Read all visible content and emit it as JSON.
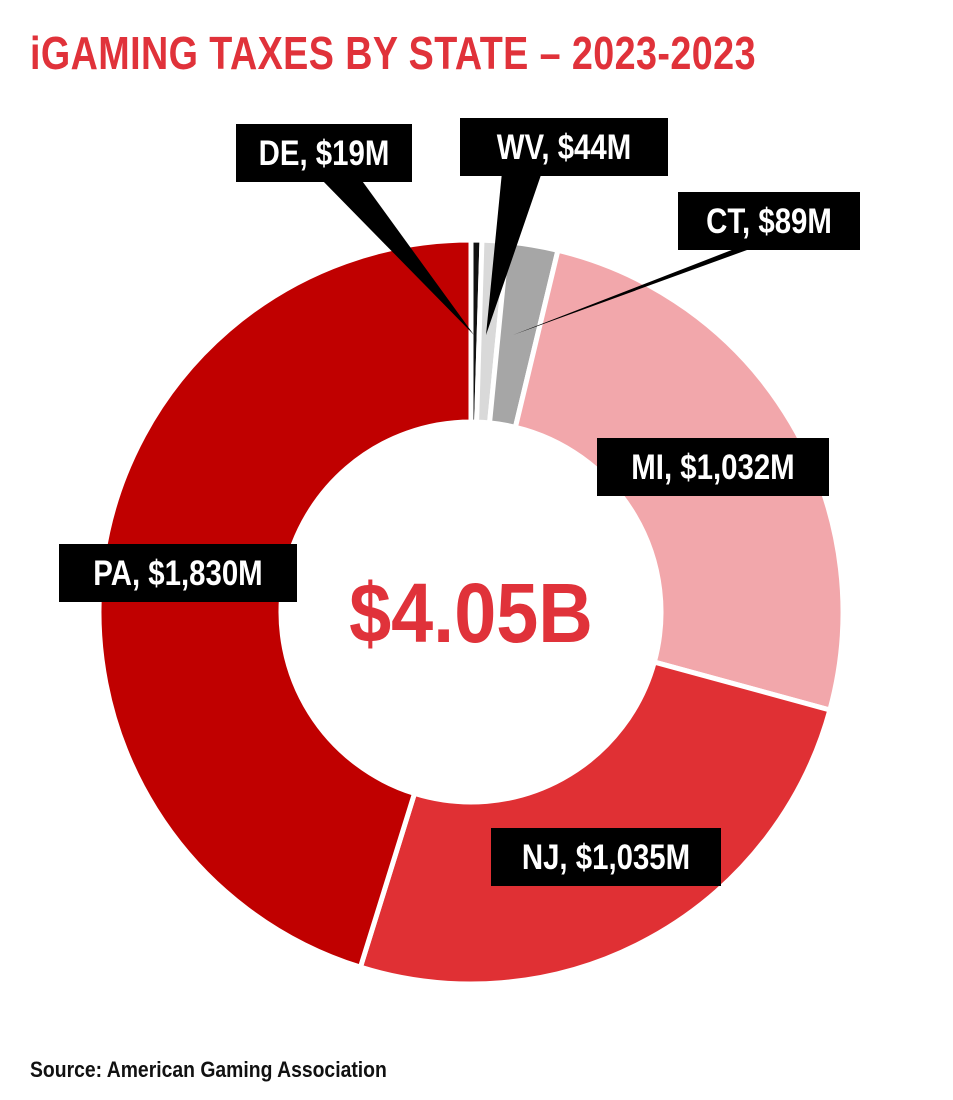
{
  "title": "iGAMING TAXES BY STATE – 2023-2023",
  "source": "Source: American Gaming Association",
  "chart_data": {
    "type": "pie",
    "subtype": "donut",
    "center_label": "$4.05B",
    "label_style": "black boxes with white text and black leader pointers",
    "slices": [
      {
        "key": "de",
        "label": "DE, $19M",
        "value": 19,
        "color": "#111111"
      },
      {
        "key": "wv",
        "label": "WV, $44M",
        "value": 44,
        "color": "#D9D9D9"
      },
      {
        "key": "ct",
        "label": "CT, $89M",
        "value": 89,
        "color": "#A6A6A6"
      },
      {
        "key": "mi",
        "label": "MI, $1,032M",
        "value": 1032,
        "color": "#F2A7AB"
      },
      {
        "key": "nj",
        "label": "NJ, $1,035M",
        "value": 1035,
        "color": "#E03034"
      },
      {
        "key": "pa",
        "label": "PA, $1,830M",
        "value": 1830,
        "color": "#C00000"
      }
    ],
    "colors": {
      "title": "#E0323A",
      "center_label": "#E0323A",
      "label_box": "#000000",
      "label_text": "#FFFFFF"
    }
  }
}
